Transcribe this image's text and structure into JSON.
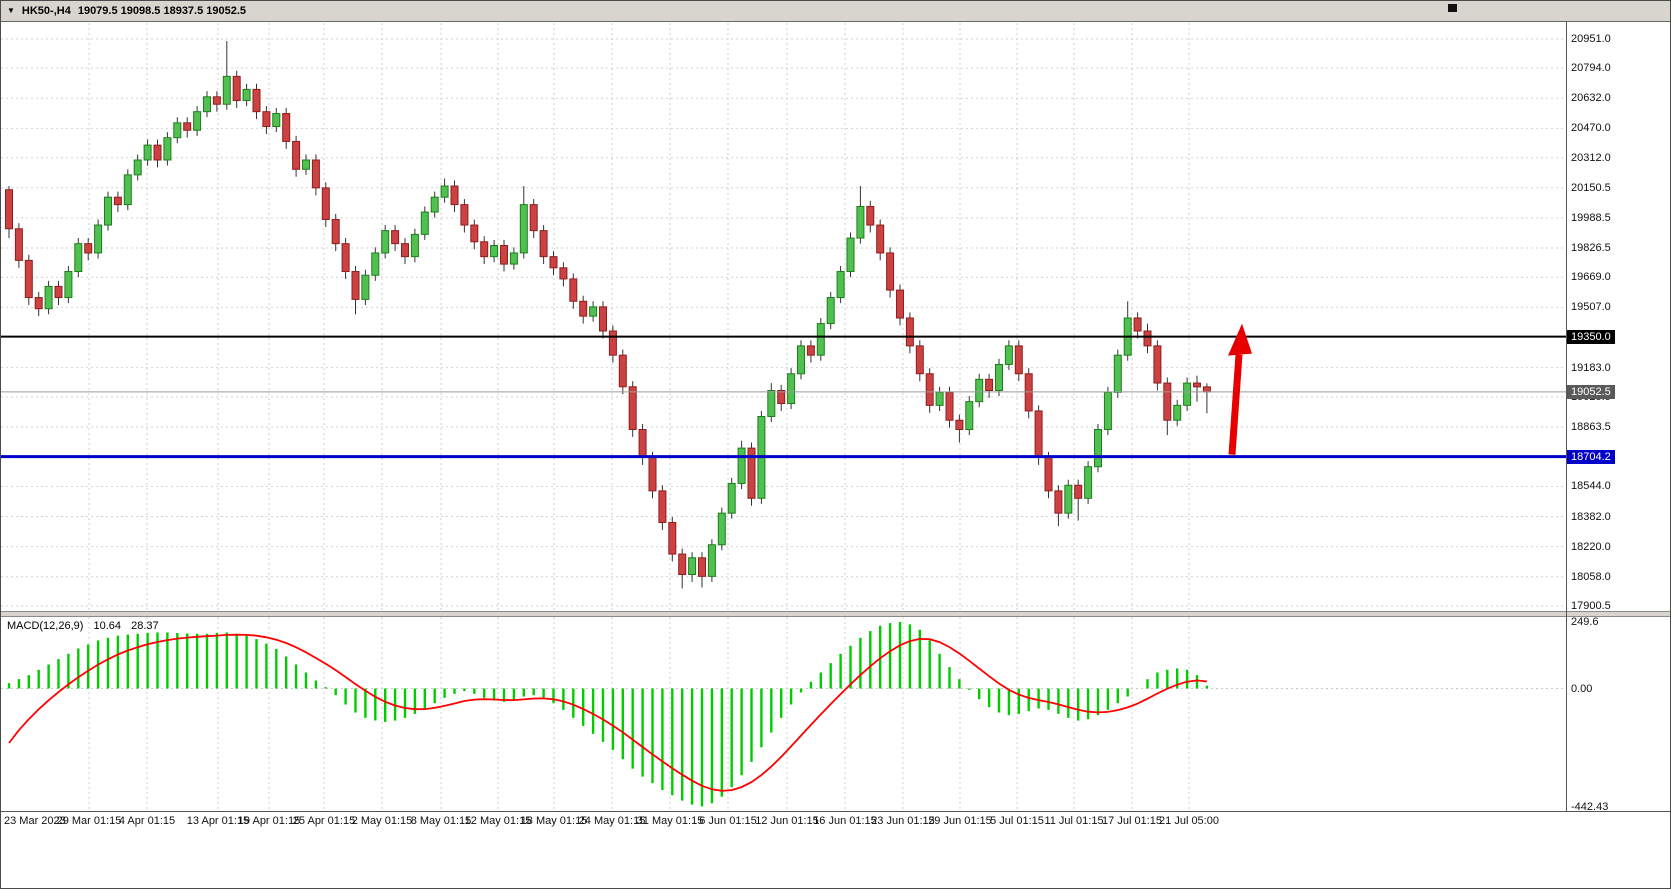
{
  "header": {
    "dropdown_glyph": "▼",
    "symbol_period": "HK50-,H4",
    "ohlc": "19079.5 19098.5 18937.5 19052.5"
  },
  "chart_data": {
    "type": "candlestick",
    "symbol": "HK50-",
    "timeframe": "H4",
    "price_axis": {
      "ylim": [
        17900.5,
        20951.0
      ],
      "visible_ticks": [
        20951.0,
        20794.0,
        20632.0,
        20470.0,
        20312.0,
        20150.5,
        19988.5,
        19826.5,
        19669.0,
        19507.0,
        19183.0,
        19025.5,
        18863.5,
        18544.0,
        18382.0,
        18220.0,
        18058.0,
        17900.5
      ]
    },
    "time_axis": [
      {
        "x": 4,
        "label": "23 Mar 2023"
      },
      {
        "x": 88,
        "label": "29 Mar 01:15"
      },
      {
        "x": 146,
        "label": "4 Apr 01:15"
      },
      {
        "x": 217,
        "label": "13 Apr 01:15"
      },
      {
        "x": 268,
        "label": "19 Apr 01:15"
      },
      {
        "x": 323,
        "label": "25 Apr 01:15"
      },
      {
        "x": 381,
        "label": "2 May 01:15"
      },
      {
        "x": 440,
        "label": "8 May 01:15"
      },
      {
        "x": 497,
        "label": "12 May 01:15"
      },
      {
        "x": 553,
        "label": "18 May 01:15"
      },
      {
        "x": 611,
        "label": "24 May 01:15"
      },
      {
        "x": 669,
        "label": "31 May 01:15"
      },
      {
        "x": 727,
        "label": "6 Jun 01:15"
      },
      {
        "x": 786,
        "label": "12 Jun 01:15"
      },
      {
        "x": 844,
        "label": "16 Jun 01:15"
      },
      {
        "x": 902,
        "label": "23 Jun 01:15"
      },
      {
        "x": 959,
        "label": "29 Jun 01:15"
      },
      {
        "x": 1016,
        "label": "5 Jul 01:15"
      },
      {
        "x": 1073,
        "label": "11 Jul 01:15"
      },
      {
        "x": 1131,
        "label": "17 Jul 01:15"
      },
      {
        "x": 1188,
        "label": "21 Jul 05:00"
      }
    ],
    "lines": {
      "resistance": {
        "price": 19350.0,
        "label": "19350.0",
        "color": "#000000"
      },
      "last_price": {
        "price": 19052.5,
        "label": "19052.5",
        "color": "#5a5a5a"
      },
      "support": {
        "price": 18704.2,
        "label": "18704.2",
        "color": "#0000c8"
      }
    },
    "arrow": {
      "color": "#e60000",
      "x": 1237,
      "price_start": 18715,
      "price_end": 19420
    },
    "colors": {
      "bull": "#50c050",
      "bull_border": "#1e7d1e",
      "bear": "#cc4242",
      "bear_border": "#8c1f1f",
      "grid": "#cfcfcf",
      "background": "#ffffff"
    },
    "candles": [
      [
        20140,
        20160,
        19880,
        19930
      ],
      [
        19930,
        19960,
        19720,
        19760
      ],
      [
        19760,
        19790,
        19520,
        19560
      ],
      [
        19560,
        19590,
        19460,
        19500
      ],
      [
        19500,
        19650,
        19470,
        19620
      ],
      [
        19620,
        19650,
        19520,
        19560
      ],
      [
        19560,
        19730,
        19530,
        19700
      ],
      [
        19700,
        19880,
        19670,
        19850
      ],
      [
        19850,
        19880,
        19760,
        19800
      ],
      [
        19800,
        19980,
        19770,
        19950
      ],
      [
        19950,
        20130,
        19920,
        20100
      ],
      [
        20100,
        20130,
        20020,
        20060
      ],
      [
        20060,
        20250,
        20030,
        20220
      ],
      [
        20220,
        20330,
        20190,
        20300
      ],
      [
        20300,
        20410,
        20270,
        20380
      ],
      [
        20380,
        20410,
        20260,
        20300
      ],
      [
        20300,
        20450,
        20270,
        20420
      ],
      [
        20420,
        20530,
        20390,
        20500
      ],
      [
        20500,
        20530,
        20420,
        20460
      ],
      [
        20460,
        20590,
        20430,
        20560
      ],
      [
        20560,
        20670,
        20530,
        20640
      ],
      [
        20640,
        20670,
        20560,
        20600
      ],
      [
        20600,
        20940,
        20570,
        20750
      ],
      [
        20750,
        20780,
        20580,
        20620
      ],
      [
        20620,
        20710,
        20590,
        20680
      ],
      [
        20680,
        20710,
        20520,
        20560
      ],
      [
        20560,
        20590,
        20440,
        20480
      ],
      [
        20480,
        20580,
        20450,
        20550
      ],
      [
        20550,
        20580,
        20360,
        20400
      ],
      [
        20400,
        20430,
        20210,
        20250
      ],
      [
        20250,
        20330,
        20220,
        20300
      ],
      [
        20300,
        20330,
        20110,
        20150
      ],
      [
        20150,
        20180,
        19940,
        19980
      ],
      [
        19980,
        20010,
        19810,
        19850
      ],
      [
        19850,
        19880,
        19660,
        19700
      ],
      [
        19700,
        19730,
        19470,
        19550
      ],
      [
        19550,
        19710,
        19520,
        19680
      ],
      [
        19680,
        19830,
        19650,
        19800
      ],
      [
        19800,
        19950,
        19770,
        19920
      ],
      [
        19920,
        19950,
        19810,
        19850
      ],
      [
        19850,
        19880,
        19740,
        19780
      ],
      [
        19780,
        19930,
        19750,
        19900
      ],
      [
        19900,
        20050,
        19870,
        20020
      ],
      [
        20020,
        20130,
        19990,
        20100
      ],
      [
        20100,
        20200,
        20070,
        20160
      ],
      [
        20160,
        20190,
        20020,
        20060
      ],
      [
        20060,
        20090,
        19910,
        19950
      ],
      [
        19950,
        19980,
        19820,
        19860
      ],
      [
        19860,
        19890,
        19740,
        19780
      ],
      [
        19780,
        19870,
        19750,
        19840
      ],
      [
        19840,
        19870,
        19700,
        19740
      ],
      [
        19740,
        19830,
        19710,
        19800
      ],
      [
        19800,
        20160,
        19770,
        20060
      ],
      [
        20060,
        20090,
        19880,
        19920
      ],
      [
        19920,
        19950,
        19740,
        19780
      ],
      [
        19780,
        19810,
        19680,
        19720
      ],
      [
        19720,
        19750,
        19620,
        19660
      ],
      [
        19660,
        19690,
        19500,
        19540
      ],
      [
        19540,
        19570,
        19420,
        19460
      ],
      [
        19460,
        19540,
        19430,
        19510
      ],
      [
        19510,
        19540,
        19340,
        19380
      ],
      [
        19380,
        19410,
        19210,
        19250
      ],
      [
        19250,
        19280,
        19040,
        19080
      ],
      [
        19080,
        19110,
        18810,
        18850
      ],
      [
        18850,
        18880,
        18660,
        18700
      ],
      [
        18700,
        18730,
        18480,
        18520
      ],
      [
        18520,
        18550,
        18310,
        18350
      ],
      [
        18350,
        18380,
        18140,
        18180
      ],
      [
        18180,
        18210,
        17995,
        18070
      ],
      [
        18070,
        18190,
        18030,
        18160
      ],
      [
        18160,
        18190,
        18000,
        18060
      ],
      [
        18060,
        18260,
        18030,
        18230
      ],
      [
        18230,
        18430,
        18200,
        18400
      ],
      [
        18400,
        18590,
        18370,
        18560
      ],
      [
        18560,
        18790,
        18530,
        18750
      ],
      [
        18750,
        18780,
        18440,
        18480
      ],
      [
        18480,
        18950,
        18450,
        18920
      ],
      [
        18920,
        19100,
        18890,
        19060
      ],
      [
        19060,
        19090,
        18950,
        18990
      ],
      [
        18990,
        19180,
        18960,
        19150
      ],
      [
        19150,
        19330,
        19120,
        19300
      ],
      [
        19300,
        19330,
        19210,
        19250
      ],
      [
        19250,
        19450,
        19220,
        19420
      ],
      [
        19420,
        19590,
        19390,
        19560
      ],
      [
        19560,
        19730,
        19530,
        19700
      ],
      [
        19700,
        19910,
        19670,
        19880
      ],
      [
        19880,
        20160,
        19850,
        20050
      ],
      [
        20050,
        20080,
        19910,
        19950
      ],
      [
        19950,
        19980,
        19760,
        19800
      ],
      [
        19800,
        19830,
        19560,
        19600
      ],
      [
        19600,
        19630,
        19410,
        19450
      ],
      [
        19450,
        19480,
        19260,
        19300
      ],
      [
        19300,
        19330,
        19110,
        19150
      ],
      [
        19150,
        19180,
        18940,
        18980
      ],
      [
        18980,
        19080,
        18950,
        19050
      ],
      [
        19050,
        19080,
        18860,
        18900
      ],
      [
        18900,
        18930,
        18780,
        18850
      ],
      [
        18850,
        19030,
        18820,
        19000
      ],
      [
        19000,
        19150,
        18970,
        19120
      ],
      [
        19120,
        19150,
        19020,
        19060
      ],
      [
        19060,
        19230,
        19030,
        19200
      ],
      [
        19200,
        19330,
        19170,
        19300
      ],
      [
        19300,
        19330,
        19110,
        19150
      ],
      [
        19150,
        19180,
        18910,
        18950
      ],
      [
        18950,
        18980,
        18660,
        18700
      ],
      [
        18700,
        18730,
        18480,
        18520
      ],
      [
        18520,
        18550,
        18330,
        18400
      ],
      [
        18400,
        18580,
        18370,
        18550
      ],
      [
        18550,
        18580,
        18360,
        18480
      ],
      [
        18480,
        18680,
        18450,
        18650
      ],
      [
        18650,
        18880,
        18620,
        18850
      ],
      [
        18850,
        19080,
        18820,
        19050
      ],
      [
        19050,
        19280,
        19020,
        19250
      ],
      [
        19250,
        19540,
        19220,
        19450
      ],
      [
        19450,
        19480,
        19340,
        19380
      ],
      [
        19380,
        19420,
        19260,
        19300
      ],
      [
        19300,
        19330,
        19060,
        19100
      ],
      [
        19100,
        19130,
        18820,
        18900
      ],
      [
        18900,
        19010,
        18870,
        18980
      ],
      [
        18980,
        19130,
        18950,
        19100
      ],
      [
        19100,
        19140,
        19000,
        19079.5
      ],
      [
        19079.5,
        19098.5,
        18937.5,
        19052.5
      ]
    ],
    "macd": {
      "label": "MACD(12,26,9)",
      "main_value": "10.64",
      "signal_value": "28.37",
      "scale_ticks": [
        {
          "v": 249.6,
          "t": "249.6"
        },
        {
          "v": 0,
          "t": "0.00"
        },
        {
          "v": -442.43,
          "t": "-442.43"
        }
      ],
      "signal_seed": -260,
      "colors": {
        "histogram": "#00cc00",
        "signal": "#ff0000"
      },
      "histogram": [
        20,
        35,
        50,
        70,
        90,
        110,
        130,
        150,
        165,
        180,
        190,
        198,
        202,
        205,
        208,
        210,
        210,
        208,
        206,
        205,
        205,
        208,
        210,
        205,
        198,
        185,
        168,
        148,
        120,
        90,
        60,
        30,
        5,
        -25,
        -60,
        -90,
        -110,
        -120,
        -125,
        -120,
        -110,
        -95,
        -75,
        -55,
        -35,
        -20,
        -10,
        -20,
        -35,
        -45,
        -50,
        -45,
        -30,
        -25,
        -35,
        -55,
        -80,
        -110,
        -140,
        -170,
        -200,
        -230,
        -265,
        -300,
        -330,
        -355,
        -380,
        -400,
        -420,
        -435,
        -442,
        -430,
        -405,
        -370,
        -325,
        -275,
        -220,
        -165,
        -110,
        -60,
        -15,
        25,
        60,
        95,
        130,
        160,
        190,
        215,
        235,
        245,
        249,
        240,
        220,
        180,
        130,
        80,
        35,
        -5,
        -40,
        -70,
        -90,
        -100,
        -95,
        -85,
        -75,
        -80,
        -95,
        -110,
        -120,
        -115,
        -100,
        -80,
        -55,
        -30,
        0,
        35,
        60,
        70,
        75,
        70,
        50,
        10.64
      ]
    }
  }
}
